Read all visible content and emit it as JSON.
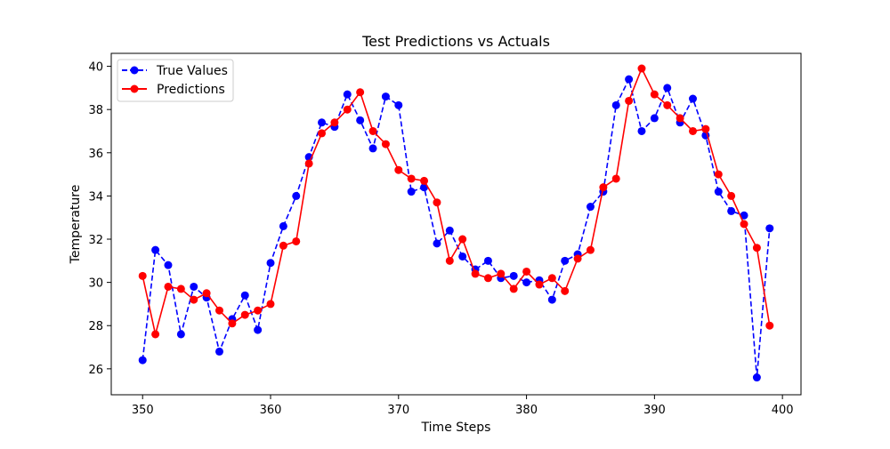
{
  "chart_data": {
    "type": "line",
    "title": "Test Predictions vs Actuals",
    "xlabel": "Time Steps",
    "ylabel": "Temperature",
    "xlim": [
      347.55,
      401.45
    ],
    "ylim": [
      24.8,
      40.6
    ],
    "xticks": [
      350,
      360,
      370,
      380,
      390,
      400
    ],
    "xtick_labels": [
      "350",
      "360",
      "370",
      "380",
      "390",
      "400"
    ],
    "yticks": [
      26,
      28,
      30,
      32,
      34,
      36,
      38,
      40
    ],
    "ytick_labels": [
      "26",
      "28",
      "30",
      "32",
      "34",
      "36",
      "38",
      "40"
    ],
    "grid": false,
    "legend_position": "upper-left",
    "x": [
      350,
      351,
      352,
      353,
      354,
      355,
      356,
      357,
      358,
      359,
      360,
      361,
      362,
      363,
      364,
      365,
      366,
      367,
      368,
      369,
      370,
      371,
      372,
      373,
      374,
      375,
      376,
      377,
      378,
      379,
      380,
      381,
      382,
      383,
      384,
      385,
      386,
      387,
      388,
      389,
      390,
      391,
      392,
      393,
      394,
      395,
      396,
      397,
      398,
      399
    ],
    "series": [
      {
        "name": "True Values",
        "color": "#0000ff",
        "linestyle": "dashed",
        "marker": "circle",
        "values": [
          26.4,
          31.5,
          30.8,
          27.6,
          29.8,
          29.3,
          26.8,
          28.3,
          29.4,
          27.8,
          30.9,
          32.6,
          34.0,
          35.8,
          37.4,
          37.2,
          38.7,
          37.5,
          36.2,
          38.6,
          38.2,
          34.2,
          34.4,
          31.8,
          32.4,
          31.2,
          30.6,
          31.0,
          30.2,
          30.3,
          30.0,
          30.1,
          29.2,
          31.0,
          31.3,
          33.5,
          34.2,
          38.2,
          39.4,
          37.0,
          37.6,
          39.0,
          37.4,
          38.5,
          36.8,
          34.2,
          33.3,
          33.1,
          25.6,
          32.5
        ]
      },
      {
        "name": "Predictions",
        "color": "#ff0000",
        "linestyle": "solid",
        "marker": "circle",
        "values": [
          30.3,
          27.6,
          29.8,
          29.7,
          29.2,
          29.5,
          28.7,
          28.1,
          28.5,
          28.7,
          29.0,
          31.7,
          31.9,
          35.5,
          36.9,
          37.4,
          38.0,
          38.8,
          37.0,
          36.4,
          35.2,
          34.8,
          34.7,
          33.7,
          31.0,
          32.0,
          30.4,
          30.2,
          30.4,
          29.7,
          30.5,
          29.9,
          30.2,
          29.6,
          31.1,
          31.5,
          34.4,
          34.8,
          38.4,
          39.9,
          38.7,
          38.2,
          37.6,
          37.0,
          37.1,
          35.0,
          34.0,
          32.7,
          31.6,
          28.0
        ]
      }
    ]
  }
}
